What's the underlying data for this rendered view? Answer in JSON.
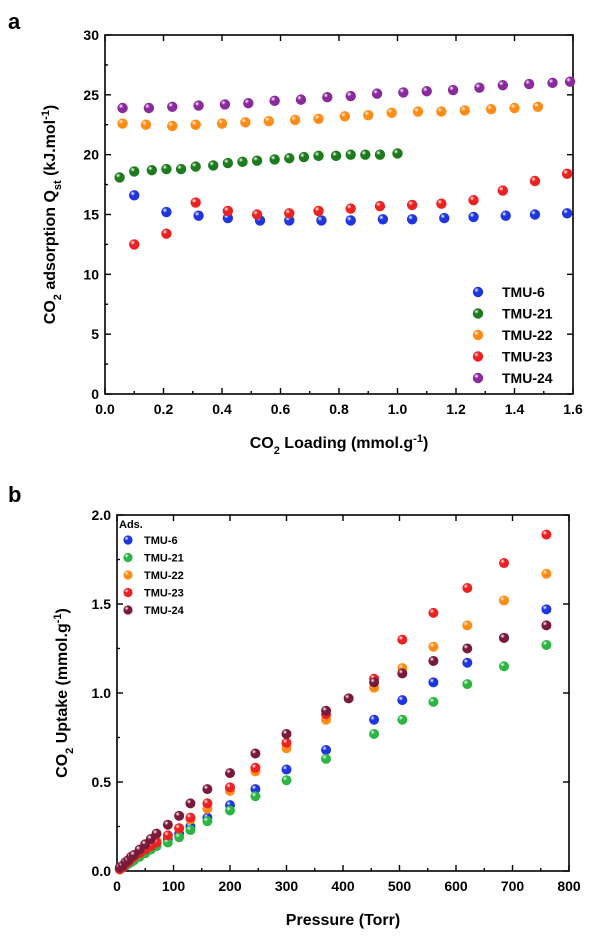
{
  "colors": {
    "TMU-6": "#1f35e0",
    "TMU-21": "#2db544",
    "TMU-21a": "#1d7a1d",
    "TMU-22": "#ff8c16",
    "TMU-23": "#ec2222",
    "TMU-24": "#8a2a9c",
    "TMU-24b": "#7a1a3a"
  },
  "chart_data": [
    {
      "panel": "a",
      "type": "scatter",
      "xlabel_parts": [
        "CO",
        "2",
        " Loading (mmol.g",
        "-1",
        ")"
      ],
      "ylabel_parts": [
        "CO",
        "2",
        " adsorption Q",
        "st",
        " (kJ.mol",
        "-1",
        ")"
      ],
      "xlim": [
        0,
        1.6
      ],
      "ylim": [
        0,
        30
      ],
      "xticks": [
        "0.0",
        "0.2",
        "0.4",
        "0.6",
        "0.8",
        "1.0",
        "1.2",
        "1.4",
        "1.6"
      ],
      "yticks": [
        "0",
        "5",
        "10",
        "15",
        "20",
        "25",
        "30"
      ],
      "legend_position": "bottom-right",
      "series": [
        {
          "name": "TMU-6",
          "color_key": "TMU-6",
          "x": [
            0.1,
            0.21,
            0.32,
            0.42,
            0.53,
            0.63,
            0.74,
            0.84,
            0.95,
            1.05,
            1.16,
            1.26,
            1.37,
            1.47,
            1.58
          ],
          "y": [
            16.6,
            15.2,
            14.9,
            14.7,
            14.5,
            14.5,
            14.5,
            14.5,
            14.6,
            14.6,
            14.7,
            14.8,
            14.9,
            15.0,
            15.1
          ]
        },
        {
          "name": "TMU-21",
          "color_key": "TMU-21a",
          "x": [
            0.05,
            0.1,
            0.16,
            0.21,
            0.26,
            0.31,
            0.37,
            0.42,
            0.47,
            0.52,
            0.58,
            0.63,
            0.68,
            0.73,
            0.79,
            0.84,
            0.89,
            0.94,
            1.0
          ],
          "y": [
            18.1,
            18.6,
            18.7,
            18.8,
            18.8,
            19.0,
            19.1,
            19.3,
            19.4,
            19.5,
            19.6,
            19.7,
            19.8,
            19.9,
            19.9,
            20.0,
            20.0,
            20.0,
            20.1
          ]
        },
        {
          "name": "TMU-22",
          "color_key": "TMU-22",
          "x": [
            0.06,
            0.14,
            0.23,
            0.31,
            0.4,
            0.48,
            0.56,
            0.65,
            0.73,
            0.82,
            0.9,
            0.98,
            1.07,
            1.15,
            1.23,
            1.32,
            1.4,
            1.48
          ],
          "y": [
            22.6,
            22.5,
            22.4,
            22.5,
            22.6,
            22.7,
            22.8,
            22.9,
            23.0,
            23.2,
            23.3,
            23.5,
            23.6,
            23.6,
            23.7,
            23.8,
            23.9,
            24.0
          ]
        },
        {
          "name": "TMU-23",
          "color_key": "TMU-23",
          "x": [
            0.1,
            0.21,
            0.31,
            0.42,
            0.52,
            0.63,
            0.73,
            0.84,
            0.94,
            1.05,
            1.15,
            1.26,
            1.36,
            1.47,
            1.58
          ],
          "y": [
            12.5,
            13.4,
            16.0,
            15.3,
            15.0,
            15.1,
            15.3,
            15.5,
            15.7,
            15.8,
            15.9,
            16.2,
            17.0,
            17.8,
            18.4
          ]
        },
        {
          "name": "TMU-24",
          "color_key": "TMU-24",
          "x": [
            0.06,
            0.15,
            0.23,
            0.32,
            0.41,
            0.49,
            0.58,
            0.67,
            0.76,
            0.84,
            0.93,
            1.02,
            1.1,
            1.19,
            1.28,
            1.36,
            1.45,
            1.53,
            1.59
          ],
          "y": [
            23.9,
            23.9,
            24.0,
            24.1,
            24.2,
            24.3,
            24.5,
            24.6,
            24.8,
            24.9,
            25.1,
            25.2,
            25.3,
            25.4,
            25.6,
            25.8,
            25.9,
            26.0,
            26.1
          ]
        }
      ]
    },
    {
      "panel": "b",
      "type": "scatter",
      "xlabel_parts": [
        "Pressure (Torr)"
      ],
      "ylabel_parts": [
        "CO",
        "2",
        " Uptake (mmol.g",
        "-1",
        ")"
      ],
      "xlim": [
        0,
        800
      ],
      "ylim": [
        0,
        2.0
      ],
      "xticks": [
        "0",
        "100",
        "200",
        "300",
        "400",
        "500",
        "600",
        "700",
        "800"
      ],
      "yticks": [
        "0.0",
        "0.5",
        "1.0",
        "1.5",
        "2.0"
      ],
      "legend_title": "Ads.",
      "legend_position": "top-left",
      "series": [
        {
          "name": "TMU-6",
          "color_key": "TMU-6",
          "x": [
            5,
            10,
            15,
            20,
            25,
            30,
            40,
            50,
            60,
            70,
            90,
            110,
            130,
            160,
            200,
            245,
            300,
            370,
            455,
            505,
            560,
            620,
            685,
            760
          ],
          "y": [
            0.01,
            0.02,
            0.03,
            0.05,
            0.06,
            0.07,
            0.09,
            0.11,
            0.13,
            0.15,
            0.18,
            0.21,
            0.25,
            0.3,
            0.37,
            0.46,
            0.57,
            0.68,
            0.85,
            0.96,
            1.06,
            1.17,
            1.31,
            1.47
          ]
        },
        {
          "name": "TMU-21",
          "color_key": "TMU-21",
          "x": [
            5,
            10,
            15,
            20,
            25,
            30,
            40,
            50,
            60,
            70,
            90,
            110,
            130,
            160,
            200,
            245,
            300,
            370,
            455,
            505,
            560,
            620,
            685,
            760
          ],
          "y": [
            0.01,
            0.02,
            0.03,
            0.04,
            0.05,
            0.06,
            0.08,
            0.1,
            0.12,
            0.14,
            0.16,
            0.19,
            0.23,
            0.28,
            0.34,
            0.42,
            0.51,
            0.63,
            0.77,
            0.85,
            0.95,
            1.05,
            1.15,
            1.27
          ]
        },
        {
          "name": "TMU-22",
          "color_key": "TMU-22",
          "x": [
            5,
            10,
            15,
            20,
            25,
            30,
            40,
            50,
            60,
            70,
            90,
            110,
            130,
            160,
            200,
            245,
            300,
            370,
            455,
            505,
            560,
            620,
            685,
            760
          ],
          "y": [
            0.01,
            0.03,
            0.04,
            0.06,
            0.07,
            0.08,
            0.1,
            0.12,
            0.15,
            0.17,
            0.2,
            0.24,
            0.29,
            0.35,
            0.45,
            0.56,
            0.69,
            0.85,
            1.03,
            1.14,
            1.26,
            1.38,
            1.52,
            1.67
          ]
        },
        {
          "name": "TMU-23",
          "color_key": "TMU-23",
          "x": [
            5,
            10,
            15,
            20,
            25,
            30,
            40,
            50,
            60,
            70,
            90,
            110,
            130,
            160,
            200,
            245,
            300,
            370,
            455,
            505,
            560,
            620,
            685,
            760
          ],
          "y": [
            0.01,
            0.02,
            0.04,
            0.05,
            0.07,
            0.08,
            0.1,
            0.12,
            0.14,
            0.16,
            0.2,
            0.24,
            0.3,
            0.38,
            0.47,
            0.58,
            0.72,
            0.88,
            1.08,
            1.3,
            1.45,
            1.59,
            1.73,
            1.89
          ]
        },
        {
          "name": "TMU-24",
          "color_key": "TMU-24b",
          "x": [
            5,
            10,
            15,
            20,
            25,
            30,
            40,
            50,
            60,
            70,
            90,
            110,
            130,
            160,
            200,
            245,
            300,
            370,
            410,
            455,
            505,
            560,
            620,
            685,
            760
          ],
          "y": [
            0.02,
            0.03,
            0.05,
            0.06,
            0.08,
            0.09,
            0.12,
            0.15,
            0.18,
            0.21,
            0.26,
            0.31,
            0.38,
            0.46,
            0.55,
            0.66,
            0.77,
            0.9,
            0.97,
            1.06,
            1.11,
            1.18,
            1.25,
            1.31,
            1.38
          ]
        }
      ]
    }
  ]
}
